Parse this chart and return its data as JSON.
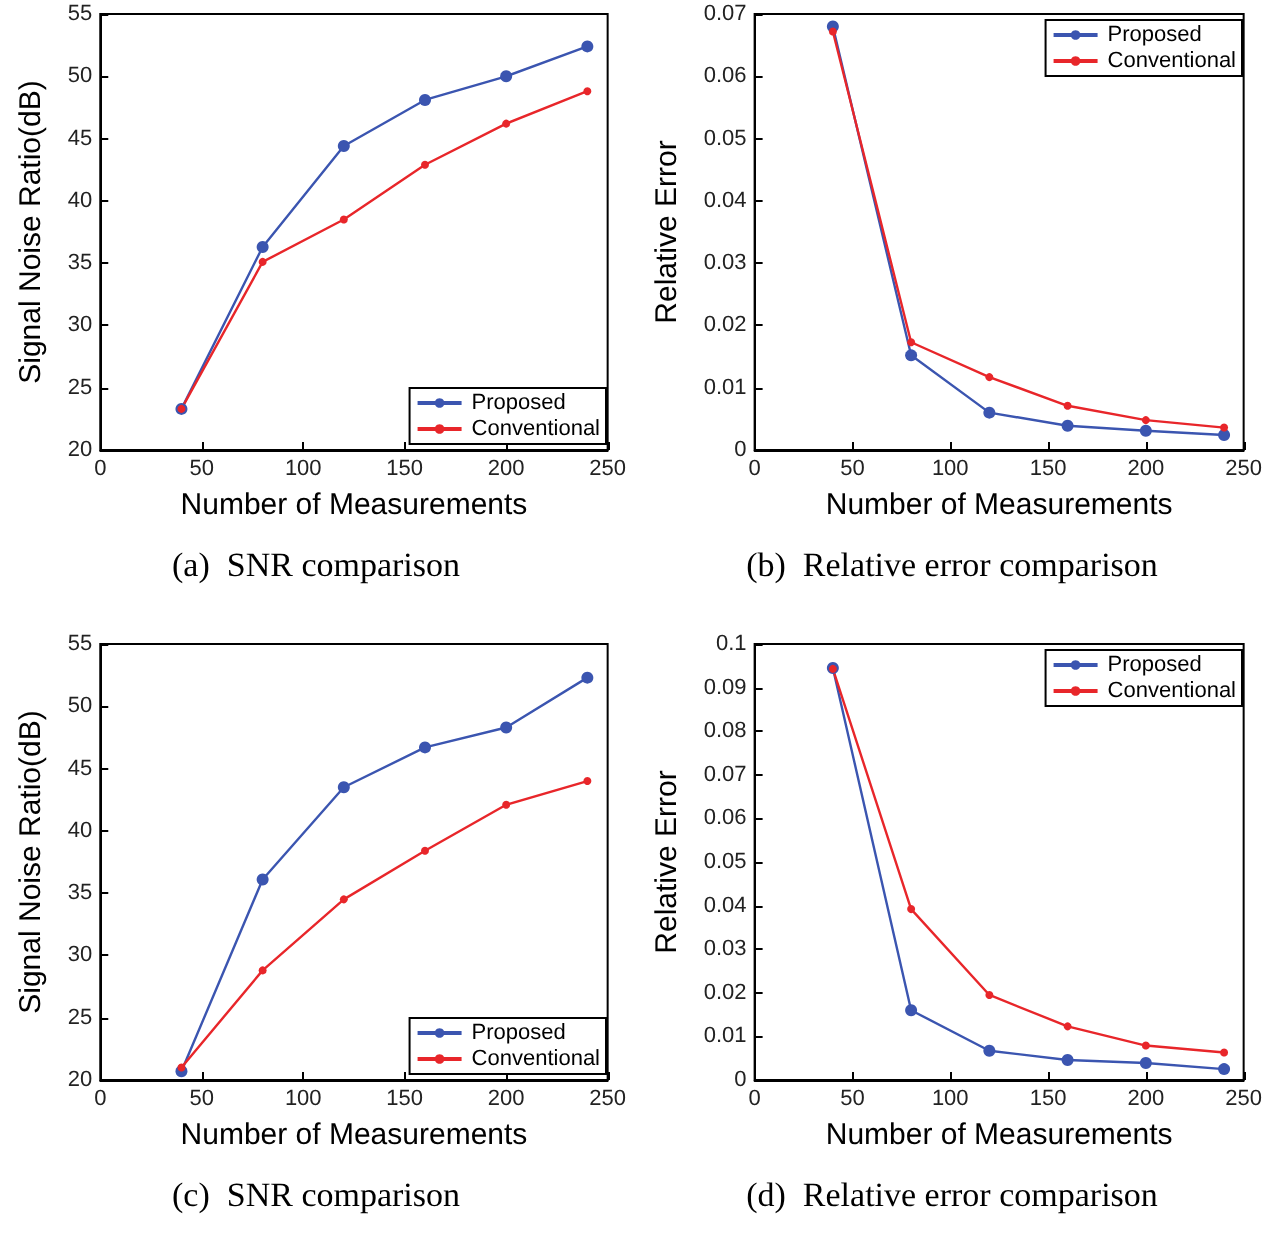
{
  "chart_data": [
    {
      "type": "line",
      "title": "(a)  SNR comparison",
      "xlabel": "Number of Measurements",
      "ylabel": "Signal Noise Ratio(dB)",
      "x": [
        40,
        80,
        120,
        160,
        200,
        240
      ],
      "series": [
        {
          "name": "Proposed",
          "color": "#3b55b0",
          "values": [
            23.3,
            36.3,
            44.4,
            48.1,
            50.0,
            52.4
          ]
        },
        {
          "name": "Conventional",
          "color": "#e8262a",
          "values": [
            23.3,
            35.1,
            38.5,
            42.9,
            46.2,
            48.8
          ]
        }
      ],
      "xlim": [
        0,
        250
      ],
      "xticks": [
        0,
        50,
        100,
        150,
        200,
        250
      ],
      "ylim": [
        20,
        55
      ],
      "yticks": [
        20,
        25,
        30,
        35,
        40,
        45,
        50,
        55
      ],
      "legend": "bottom right",
      "marker": "circle",
      "grid": false
    },
    {
      "type": "line",
      "title": "(b)  Relative error comparison",
      "xlabel": "Number of Measurements",
      "ylabel": "Relative Error",
      "x": [
        40,
        80,
        120,
        160,
        200,
        240
      ],
      "series": [
        {
          "name": "Proposed",
          "color": "#3b55b0",
          "values": [
            0.068,
            0.0152,
            0.006,
            0.0039,
            0.0031,
            0.0024
          ]
        },
        {
          "name": "Conventional",
          "color": "#e8262a",
          "values": [
            0.0672,
            0.0173,
            0.0117,
            0.0071,
            0.0048,
            0.0036
          ]
        }
      ],
      "xlim": [
        0,
        250
      ],
      "xticks": [
        0,
        50,
        100,
        150,
        200,
        250
      ],
      "ylim": [
        0,
        0.07
      ],
      "yticks": [
        0,
        0.01,
        0.02,
        0.03,
        0.04,
        0.05,
        0.06,
        0.07
      ],
      "legend": "top right",
      "marker": "circle",
      "grid": false
    },
    {
      "type": "line",
      "title": "(c)  SNR comparison",
      "xlabel": "Number of Measurements",
      "ylabel": "Signal Noise Ratio(dB)",
      "x": [
        40,
        80,
        120,
        160,
        200,
        240
      ],
      "series": [
        {
          "name": "Proposed",
          "color": "#3b55b0",
          "values": [
            20.7,
            36.1,
            43.5,
            46.7,
            48.3,
            52.3
          ]
        },
        {
          "name": "Conventional",
          "color": "#e8262a",
          "values": [
            21.0,
            28.8,
            34.5,
            38.4,
            42.1,
            44.0
          ]
        }
      ],
      "xlim": [
        0,
        250
      ],
      "xticks": [
        0,
        50,
        100,
        150,
        200,
        250
      ],
      "ylim": [
        20,
        55
      ],
      "yticks": [
        20,
        25,
        30,
        35,
        40,
        45,
        50,
        55
      ],
      "legend": "bottom right",
      "marker": "circle",
      "grid": false
    },
    {
      "type": "line",
      "title": "(d)  Relative error comparison",
      "xlabel": "Number of Measurements",
      "ylabel": "Relative Error",
      "x": [
        40,
        80,
        120,
        160,
        200,
        240
      ],
      "series": [
        {
          "name": "Proposed",
          "color": "#3b55b0",
          "values": [
            0.0945,
            0.016,
            0.0067,
            0.0046,
            0.0039,
            0.0025
          ]
        },
        {
          "name": "Conventional",
          "color": "#e8262a",
          "values": [
            0.0943,
            0.0392,
            0.0195,
            0.0123,
            0.0079,
            0.0063
          ]
        }
      ],
      "xlim": [
        0,
        250
      ],
      "xticks": [
        0,
        50,
        100,
        150,
        200,
        250
      ],
      "ylim": [
        0,
        0.1
      ],
      "yticks": [
        0,
        0.01,
        0.02,
        0.03,
        0.04,
        0.05,
        0.06,
        0.07,
        0.08,
        0.09,
        0.1
      ],
      "legend": "top right",
      "marker": "circle",
      "grid": false
    }
  ]
}
